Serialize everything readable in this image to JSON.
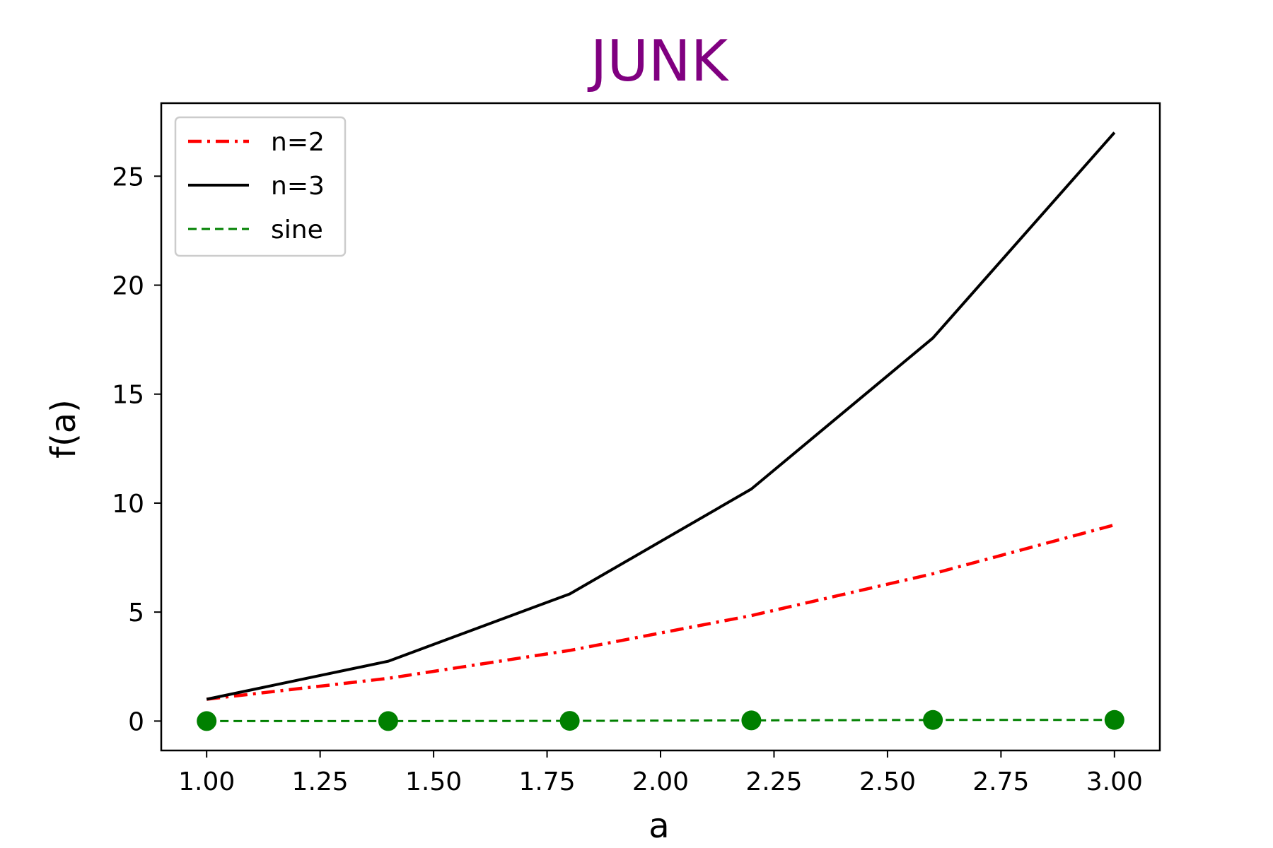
{
  "chart_data": {
    "type": "line",
    "title": "JUNK",
    "title_color": "#800080",
    "xlabel": "a",
    "ylabel": "f(a)",
    "xlim": [
      0.9,
      3.1
    ],
    "ylim": [
      -1.35,
      28.35
    ],
    "xticks": [
      1.0,
      1.25,
      1.5,
      1.75,
      2.0,
      2.25,
      2.5,
      2.75,
      3.0
    ],
    "xtick_labels": [
      "1.00",
      "1.25",
      "1.50",
      "1.75",
      "2.00",
      "2.25",
      "2.50",
      "2.75",
      "3.00"
    ],
    "yticks": [
      0,
      5,
      10,
      15,
      20,
      25
    ],
    "ytick_labels": [
      "0",
      "5",
      "10",
      "15",
      "20",
      "25"
    ],
    "grid": false,
    "legend_position": "top-left",
    "x": [
      1.0,
      1.4,
      1.8,
      2.2,
      2.6,
      3.0
    ],
    "series": [
      {
        "name": "n=2",
        "values": [
          1.0,
          1.96,
          3.24,
          4.84,
          6.76,
          9.0
        ],
        "color": "#ff0000",
        "style": "dashdot",
        "markers": false
      },
      {
        "name": "n=3",
        "values": [
          1.0,
          2.744,
          5.832,
          10.648,
          17.576,
          27.0
        ],
        "color": "#000000",
        "style": "solid",
        "markers": false
      },
      {
        "name": "sine",
        "values": [
          0.0,
          0.0,
          0.01,
          0.03,
          0.05,
          0.05
        ],
        "color": "#008000",
        "style": "dashed",
        "markers": true
      }
    ]
  }
}
